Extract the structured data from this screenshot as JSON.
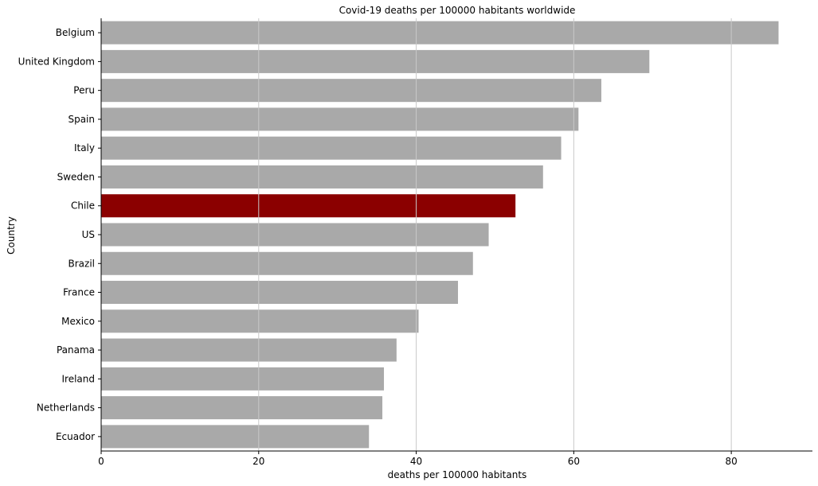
{
  "chart_data": {
    "type": "bar",
    "orientation": "horizontal",
    "title": "Covid-19 deaths per 100000 habitants worldwide",
    "xlabel": "deaths per 100000 habitants",
    "ylabel": "Country",
    "categories": [
      "Belgium",
      "United Kingdom",
      "Peru",
      "Spain",
      "Italy",
      "Sweden",
      "Chile",
      "US",
      "Brazil",
      "France",
      "Mexico",
      "Panama",
      "Ireland",
      "Netherlands",
      "Ecuador"
    ],
    "values": [
      86.0,
      69.6,
      63.5,
      60.6,
      58.4,
      56.1,
      52.6,
      49.2,
      47.2,
      45.3,
      40.3,
      37.5,
      35.9,
      35.7,
      34.0
    ],
    "xlim": [
      0,
      90.3
    ],
    "xticks": [
      0,
      20,
      40,
      60,
      80
    ],
    "grid": "x",
    "colors": {
      "default": "#a9a9a9",
      "highlight": "#8b0000",
      "highlight_category": "Chile",
      "grid": "#c8c8c8",
      "axis": "#000000"
    }
  }
}
